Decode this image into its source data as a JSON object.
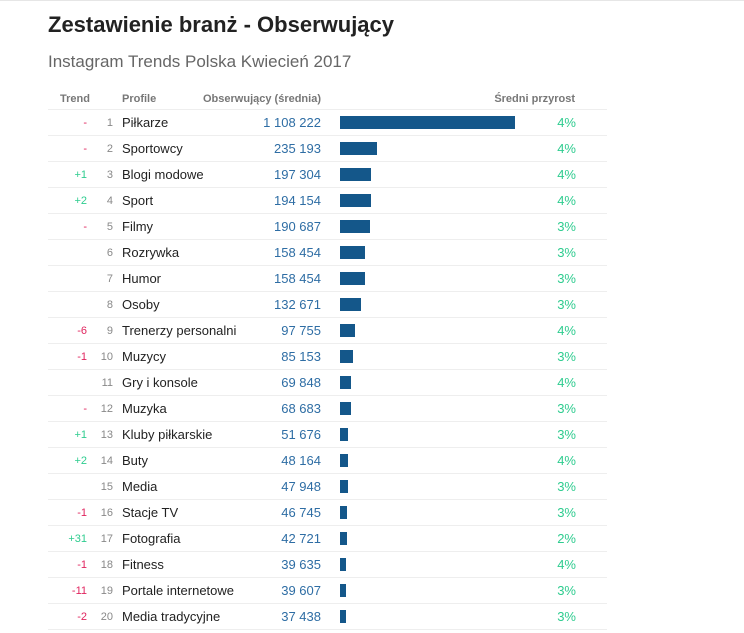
{
  "title": "Zestawienie branż - Obserwujący",
  "subtitle": "Instagram Trends Polska Kwiecień 2017",
  "chart_data": {
    "type": "table",
    "columns": [
      "Trend",
      "Profile",
      "Obserwujący (średnia)",
      "Średni przyrost"
    ],
    "rows": [
      {
        "trend": "-",
        "rank": "1",
        "name": "Piłkarze",
        "value": 1108222,
        "label": "1 108 222",
        "growth": "4%"
      },
      {
        "trend": "-",
        "rank": "2",
        "name": "Sportowcy",
        "value": 235193,
        "label": "235 193",
        "growth": "4%"
      },
      {
        "trend": "+1",
        "rank": "3",
        "name": "Blogi modowe",
        "value": 197304,
        "label": "197 304",
        "growth": "4%"
      },
      {
        "trend": "+2",
        "rank": "4",
        "name": "Sport",
        "value": 194154,
        "label": "194 154",
        "growth": "4%"
      },
      {
        "trend": "-",
        "rank": "5",
        "name": "Filmy",
        "value": 190687,
        "label": "190 687",
        "growth": "3%"
      },
      {
        "trend": "",
        "rank": "6",
        "name": "Rozrywka",
        "value": 158454,
        "label": "158 454",
        "growth": "3%"
      },
      {
        "trend": "",
        "rank": "7",
        "name": "Humor",
        "value": 158454,
        "label": "158 454",
        "growth": "3%"
      },
      {
        "trend": "",
        "rank": "8",
        "name": "Osoby",
        "value": 132671,
        "label": "132 671",
        "growth": "3%"
      },
      {
        "trend": "-6",
        "rank": "9",
        "name": "Trenerzy personalni",
        "value": 97755,
        "label": "97 755",
        "growth": "4%"
      },
      {
        "trend": "-1",
        "rank": "10",
        "name": "Muzycy",
        "value": 85153,
        "label": "85 153",
        "growth": "3%"
      },
      {
        "trend": "",
        "rank": "11",
        "name": "Gry i konsole",
        "value": 69848,
        "label": "69 848",
        "growth": "4%"
      },
      {
        "trend": "-",
        "rank": "12",
        "name": "Muzyka",
        "value": 68683,
        "label": "68 683",
        "growth": "3%"
      },
      {
        "trend": "+1",
        "rank": "13",
        "name": "Kluby piłkarskie",
        "value": 51676,
        "label": "51 676",
        "growth": "3%"
      },
      {
        "trend": "+2",
        "rank": "14",
        "name": "Buty",
        "value": 48164,
        "label": "48 164",
        "growth": "4%"
      },
      {
        "trend": "",
        "rank": "15",
        "name": "Media",
        "value": 47948,
        "label": "47 948",
        "growth": "3%"
      },
      {
        "trend": "-1",
        "rank": "16",
        "name": "Stacje TV",
        "value": 46745,
        "label": "46 745",
        "growth": "3%"
      },
      {
        "trend": "+31",
        "rank": "17",
        "name": "Fotografia",
        "value": 42721,
        "label": "42 721",
        "growth": "2%"
      },
      {
        "trend": "-1",
        "rank": "18",
        "name": "Fitness",
        "value": 39635,
        "label": "39 635",
        "growth": "4%"
      },
      {
        "trend": "-11",
        "rank": "19",
        "name": "Portale internetowe",
        "value": 39607,
        "label": "39 607",
        "growth": "3%"
      },
      {
        "trend": "-2",
        "rank": "20",
        "name": "Media tradycyjne",
        "value": 37438,
        "label": "37 438",
        "growth": "3%"
      }
    ],
    "max": 1108222
  },
  "colors": {
    "bar": "#14578a",
    "up": "#2ecc8f",
    "down": "#e0245e"
  }
}
